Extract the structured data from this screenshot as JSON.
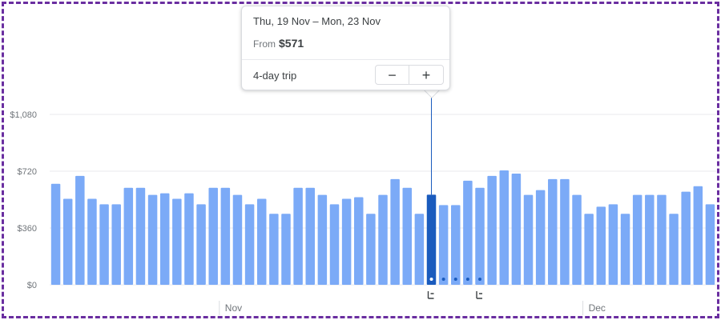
{
  "tooltip": {
    "dates": "Thu, 19 Nov – Mon, 23 Nov",
    "from_label": "From",
    "price": "$571",
    "trip_label": "4-day trip",
    "minus_label": "−",
    "plus_label": "+"
  },
  "colors": {
    "bar": "#7baaf7",
    "selected_bar": "#1a5bbd",
    "grid": "#e8eaed",
    "marker_line": "#1a5bbd"
  },
  "icons": {
    "departure": "airplane-takeoff-icon",
    "return": "airplane-landing-icon"
  },
  "chart_data": {
    "type": "bar",
    "title": "",
    "xlabel": "",
    "ylabel": "",
    "ylim": [
      0,
      1080
    ],
    "y_ticks": [
      {
        "value": 0,
        "label": "$0"
      },
      {
        "value": 360,
        "label": "$360"
      },
      {
        "value": 720,
        "label": "$720"
      },
      {
        "value": 1080,
        "label": "$1,080"
      }
    ],
    "month_labels": [
      {
        "label": "Nov",
        "after_bar_index": 13
      },
      {
        "label": "Dec",
        "after_bar_index": 43
      }
    ],
    "selected_index": 31,
    "selected_value": 571,
    "trip_dot_indices": [
      31,
      32,
      33,
      34,
      35
    ],
    "values": [
      640,
      545,
      690,
      545,
      510,
      510,
      615,
      615,
      570,
      580,
      545,
      580,
      510,
      615,
      615,
      570,
      510,
      545,
      450,
      450,
      615,
      615,
      570,
      510,
      545,
      555,
      450,
      570,
      670,
      615,
      450,
      571,
      505,
      505,
      660,
      615,
      690,
      725,
      705,
      570,
      600,
      670,
      670,
      570,
      450,
      495,
      510,
      450,
      570,
      570,
      570,
      450,
      590,
      625,
      510
    ]
  }
}
